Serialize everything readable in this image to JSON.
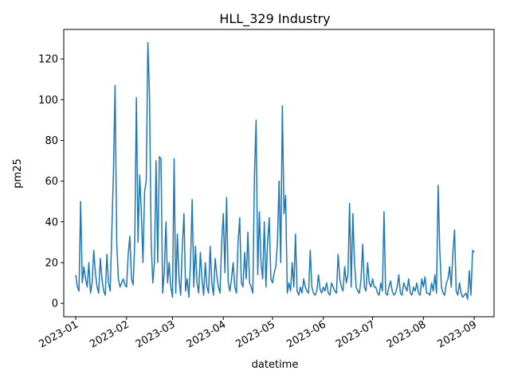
{
  "chart_data": {
    "type": "line",
    "title": "HLL_329 Industry",
    "xlabel": "datetime",
    "ylabel": "pm25",
    "series": [
      {
        "name": "pm25",
        "color": "#1f77b4",
        "x": [
          19358,
          19359,
          19360,
          19361,
          19362,
          19363,
          19364,
          19365,
          19366,
          19367,
          19368,
          19369,
          19370,
          19371,
          19372,
          19373,
          19374,
          19375,
          19376,
          19377,
          19378,
          19379,
          19380,
          19381,
          19382,
          19383,
          19384,
          19385,
          19386,
          19387,
          19388,
          19389,
          19390,
          19391,
          19392,
          19393,
          19394,
          19395,
          19396,
          19397,
          19398,
          19399,
          19400,
          19401,
          19402,
          19403,
          19404,
          19405,
          19406,
          19407,
          19408,
          19409,
          19410,
          19411,
          19412,
          19413,
          19414,
          19415,
          19416,
          19417,
          19418,
          19419,
          19420,
          19421,
          19422,
          19423,
          19424,
          19425,
          19426,
          19427,
          19428,
          19429,
          19430,
          19431,
          19432,
          19433,
          19434,
          19435,
          19436,
          19437,
          19438,
          19439,
          19440,
          19441,
          19442,
          19443,
          19444,
          19445,
          19446,
          19447,
          19448,
          19449,
          19450,
          19451,
          19452,
          19453,
          19454,
          19455,
          19456,
          19457,
          19458,
          19459,
          19460,
          19461,
          19462,
          19463,
          19464,
          19465,
          19466,
          19467,
          19468,
          19469,
          19470,
          19471,
          19472,
          19473,
          19474,
          19475,
          19476,
          19477,
          19478,
          19479,
          19480,
          19481,
          19482,
          19483,
          19484,
          19485,
          19486,
          19487,
          19488,
          19489,
          19490,
          19491,
          19492,
          19493,
          19494,
          19495,
          19496,
          19497,
          19498,
          19499,
          19500,
          19501,
          19502,
          19503,
          19504,
          19505,
          19506,
          19507,
          19508,
          19509,
          19510,
          19511,
          19512,
          19513,
          19514,
          19515,
          19516,
          19517,
          19518,
          19519,
          19520,
          19521,
          19522,
          19523,
          19524,
          19525,
          19526,
          19527,
          19528,
          19529,
          19530,
          19531,
          19532,
          19533,
          19534,
          19535,
          19536,
          19537,
          19538,
          19539,
          19540,
          19541,
          19542,
          19543,
          19544,
          19545,
          19546,
          19547,
          19548,
          19549,
          19550,
          19551,
          19552,
          19553,
          19554,
          19555,
          19556,
          19557,
          19558,
          19559,
          19560,
          19561,
          19562,
          19563,
          19564,
          19565,
          19566,
          19567,
          19568,
          19569,
          19570,
          19571,
          19572,
          19573,
          19574,
          19575,
          19576,
          19577,
          19578,
          19579,
          19580,
          19581,
          19582,
          19583,
          19584,
          19585,
          19586,
          19587,
          19588,
          19589,
          19590,
          19591,
          19592,
          19593,
          19594,
          19595,
          19596,
          19597,
          19598,
          19599,
          19600,
          19601
        ],
        "values": [
          14,
          8,
          6,
          50,
          10,
          18,
          12,
          8,
          20,
          5,
          10,
          26,
          15,
          8,
          5,
          22,
          12,
          6,
          4,
          24,
          10,
          6,
          35,
          64,
          107,
          30,
          12,
          8,
          10,
          12,
          9,
          8,
          24,
          33,
          12,
          9,
          30,
          101,
          30,
          63,
          45,
          20,
          55,
          60,
          128,
          102,
          30,
          10,
          20,
          70,
          20,
          72,
          71,
          5,
          15,
          40,
          10,
          20,
          8,
          3,
          71,
          5,
          34,
          12,
          4,
          28,
          44,
          6,
          12,
          3,
          20,
          51,
          8,
          28,
          10,
          5,
          25,
          12,
          4,
          20,
          8,
          5,
          28,
          10,
          4,
          22,
          14,
          8,
          5,
          30,
          44,
          15,
          52,
          10,
          6,
          12,
          20,
          8,
          5,
          30,
          42,
          10,
          8,
          25,
          12,
          35,
          10,
          8,
          5,
          63,
          90,
          14,
          45,
          20,
          12,
          40,
          8,
          30,
          42,
          12,
          10,
          15,
          18,
          30,
          60,
          20,
          97,
          44,
          53,
          5,
          10,
          6,
          20,
          8,
          34,
          6,
          4,
          8,
          5,
          12,
          8,
          6,
          5,
          26,
          8,
          5,
          4,
          6,
          14,
          7,
          5,
          8,
          6,
          10,
          5,
          4,
          10,
          8,
          6,
          5,
          24,
          12,
          8,
          6,
          18,
          10,
          14,
          49,
          8,
          44,
          20,
          8,
          6,
          5,
          12,
          29,
          8,
          6,
          20,
          10,
          8,
          12,
          8,
          8,
          5,
          4,
          10,
          6,
          45,
          5,
          4,
          8,
          11,
          6,
          4,
          5,
          8,
          14,
          5,
          4,
          10,
          8,
          6,
          12,
          5,
          4,
          8,
          6,
          10,
          5,
          4,
          12,
          8,
          13,
          5,
          5,
          4,
          10,
          6,
          14,
          5,
          58,
          26,
          8,
          5,
          4,
          10,
          12,
          18,
          8,
          25,
          36,
          6,
          4,
          10,
          5,
          3,
          4,
          5,
          2,
          16,
          4,
          26,
          25
        ]
      }
    ],
    "xlim": [
      19350.7,
      19613.1
    ],
    "xticks": [
      {
        "value": 19358,
        "label": "2023-01"
      },
      {
        "value": 19389,
        "label": "2023-02"
      },
      {
        "value": 19417,
        "label": "2023-03"
      },
      {
        "value": 19448,
        "label": "2023-04"
      },
      {
        "value": 19478,
        "label": "2023-05"
      },
      {
        "value": 19509,
        "label": "2023-06"
      },
      {
        "value": 19539,
        "label": "2023-07"
      },
      {
        "value": 19570,
        "label": "2023-08"
      },
      {
        "value": 19601,
        "label": "2023-09"
      }
    ],
    "ylim": [
      -6.6,
      134.5
    ],
    "yticks": [
      0,
      20,
      40,
      60,
      80,
      100,
      120
    ]
  }
}
